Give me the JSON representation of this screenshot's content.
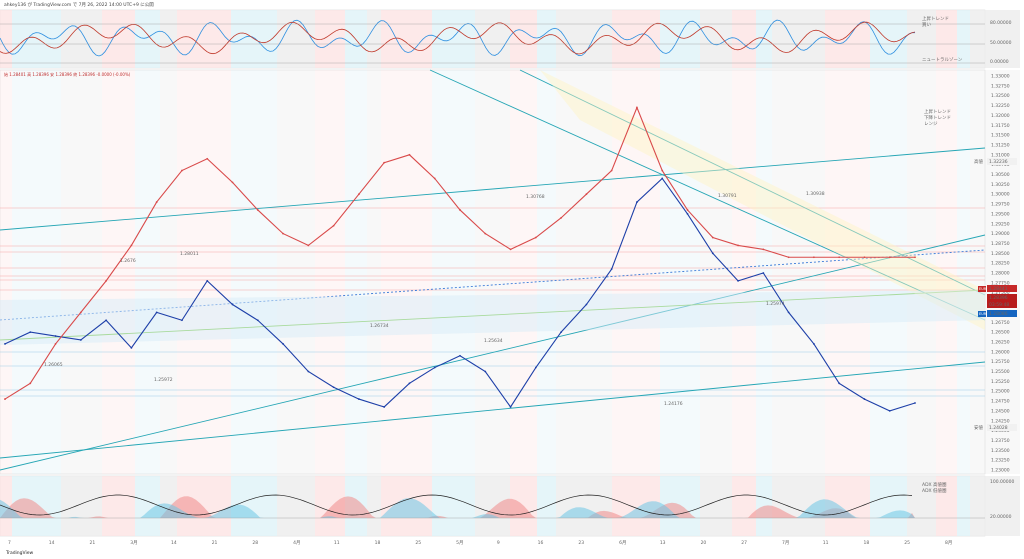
{
  "header": {
    "title": "ahkey136 が TradingView.com で 7月 26, 2022 14:00 UTC+9 に公開",
    "ohlc": "始 1.28401 高 1.28396 安 1.28396 終 1.28396 -0.0000 (-0.00%)"
  },
  "osc_top": {
    "labels": [
      "80.00000",
      "50.00000",
      "0.00000"
    ],
    "legend": "ニュートラルゾーン",
    "notes": [
      "上昇トレンド",
      "買い"
    ]
  },
  "price_axis": {
    "labels": [
      "1.33000",
      "1.32750",
      "1.32500",
      "1.32250",
      "1.32000",
      "1.31750",
      "1.31500",
      "1.31250",
      "1.31000",
      "1.30750",
      "1.30500",
      "1.30250",
      "1.30000",
      "1.29750",
      "1.29500",
      "1.29250",
      "1.29000",
      "1.28750",
      "1.28500",
      "1.28250",
      "1.28000",
      "1.27750",
      "1.27500",
      "1.27250",
      "1.27000",
      "1.26750",
      "1.26500",
      "1.26250",
      "1.26000",
      "1.25750",
      "1.25500",
      "1.25250",
      "1.25000",
      "1.24750",
      "1.24500",
      "1.24250",
      "1.24000",
      "1.23750",
      "1.23500",
      "1.23250",
      "1.23000"
    ],
    "high_label": "高値",
    "high_value": "1.32236",
    "low_label": "安値",
    "low_value": "1.24028",
    "tags": [
      {
        "text": "1.28441",
        "color": "#c62828"
      },
      {
        "text": "1.28396",
        "color": "#b71c1c"
      },
      {
        "text": "03:59:48",
        "color": "#b71c1c"
      },
      {
        "text": "1.28086",
        "color": "#1565c0"
      }
    ],
    "small_tags": [
      "EUR",
      "EUR",
      "EUR",
      "EUR"
    ]
  },
  "annotations": [
    {
      "text": "1.2676"
    },
    {
      "text": "1.28011"
    },
    {
      "text": "1.30768"
    },
    {
      "text": "1.30791"
    },
    {
      "text": "1.30938"
    },
    {
      "text": "1.26065"
    },
    {
      "text": "1.25972"
    },
    {
      "text": "1.26734"
    },
    {
      "text": "1.25634"
    },
    {
      "text": "1.25974"
    },
    {
      "text": "1.24176"
    }
  ],
  "right_notes": [
    "上昇トレンド",
    "下降トレンド",
    "レンジ"
  ],
  "osc_bottom": {
    "labels": [
      "100.00000",
      "20.00000"
    ],
    "notes": [
      "ADX 高値圏",
      "ADX 低値圏"
    ]
  },
  "time_axis": {
    "labels": [
      "7",
      "14",
      "21",
      "3月",
      "14",
      "21",
      "28",
      "4月",
      "11",
      "18",
      "25",
      "5月",
      "9",
      "16",
      "23",
      "6月",
      "13",
      "20",
      "27",
      "7月",
      "11",
      "18",
      "25",
      "8月"
    ]
  },
  "brand": "TradingView",
  "chart_data": {
    "type": "line",
    "title": "",
    "xlabel": "",
    "ylabel": "",
    "ylim": [
      1.23,
      1.33
    ],
    "x": [
      0,
      5,
      10,
      15,
      20,
      25,
      30,
      35,
      40,
      45,
      50,
      55,
      60,
      65,
      70,
      75,
      80,
      85,
      90,
      95,
      100,
      105,
      110,
      115,
      120,
      125,
      130,
      135,
      140,
      145,
      150,
      155,
      160,
      165,
      170,
      175,
      180
    ],
    "series": [
      {
        "name": "",
        "values": [
          1.262,
          1.265,
          1.264,
          1.263,
          1.268,
          1.261,
          1.27,
          1.268,
          1.278,
          1.272,
          1.268,
          1.262,
          1.255,
          1.251,
          1.248,
          1.246,
          1.252,
          1.256,
          1.259,
          1.255,
          1.246,
          1.256,
          1.265,
          1.272,
          1.281,
          1.298,
          1.304,
          1.295,
          1.285,
          1.278,
          1.28,
          1.27,
          1.262,
          1.252,
          1.248,
          1.245,
          1.247
        ]
      },
      {
        "name": "",
        "values": [
          1.248,
          1.252,
          1.262,
          1.27,
          1.278,
          1.287,
          1.298,
          1.306,
          1.309,
          1.303,
          1.296,
          1.29,
          1.287,
          1.292,
          1.3,
          1.308,
          1.31,
          1.304,
          1.296,
          1.29,
          1.286,
          1.289,
          1.294,
          1.3,
          1.306,
          1.322,
          1.306,
          1.296,
          1.289,
          1.287,
          1.286,
          1.284,
          1.284,
          1.284,
          1.284,
          1.284,
          1.284
        ]
      }
    ]
  }
}
